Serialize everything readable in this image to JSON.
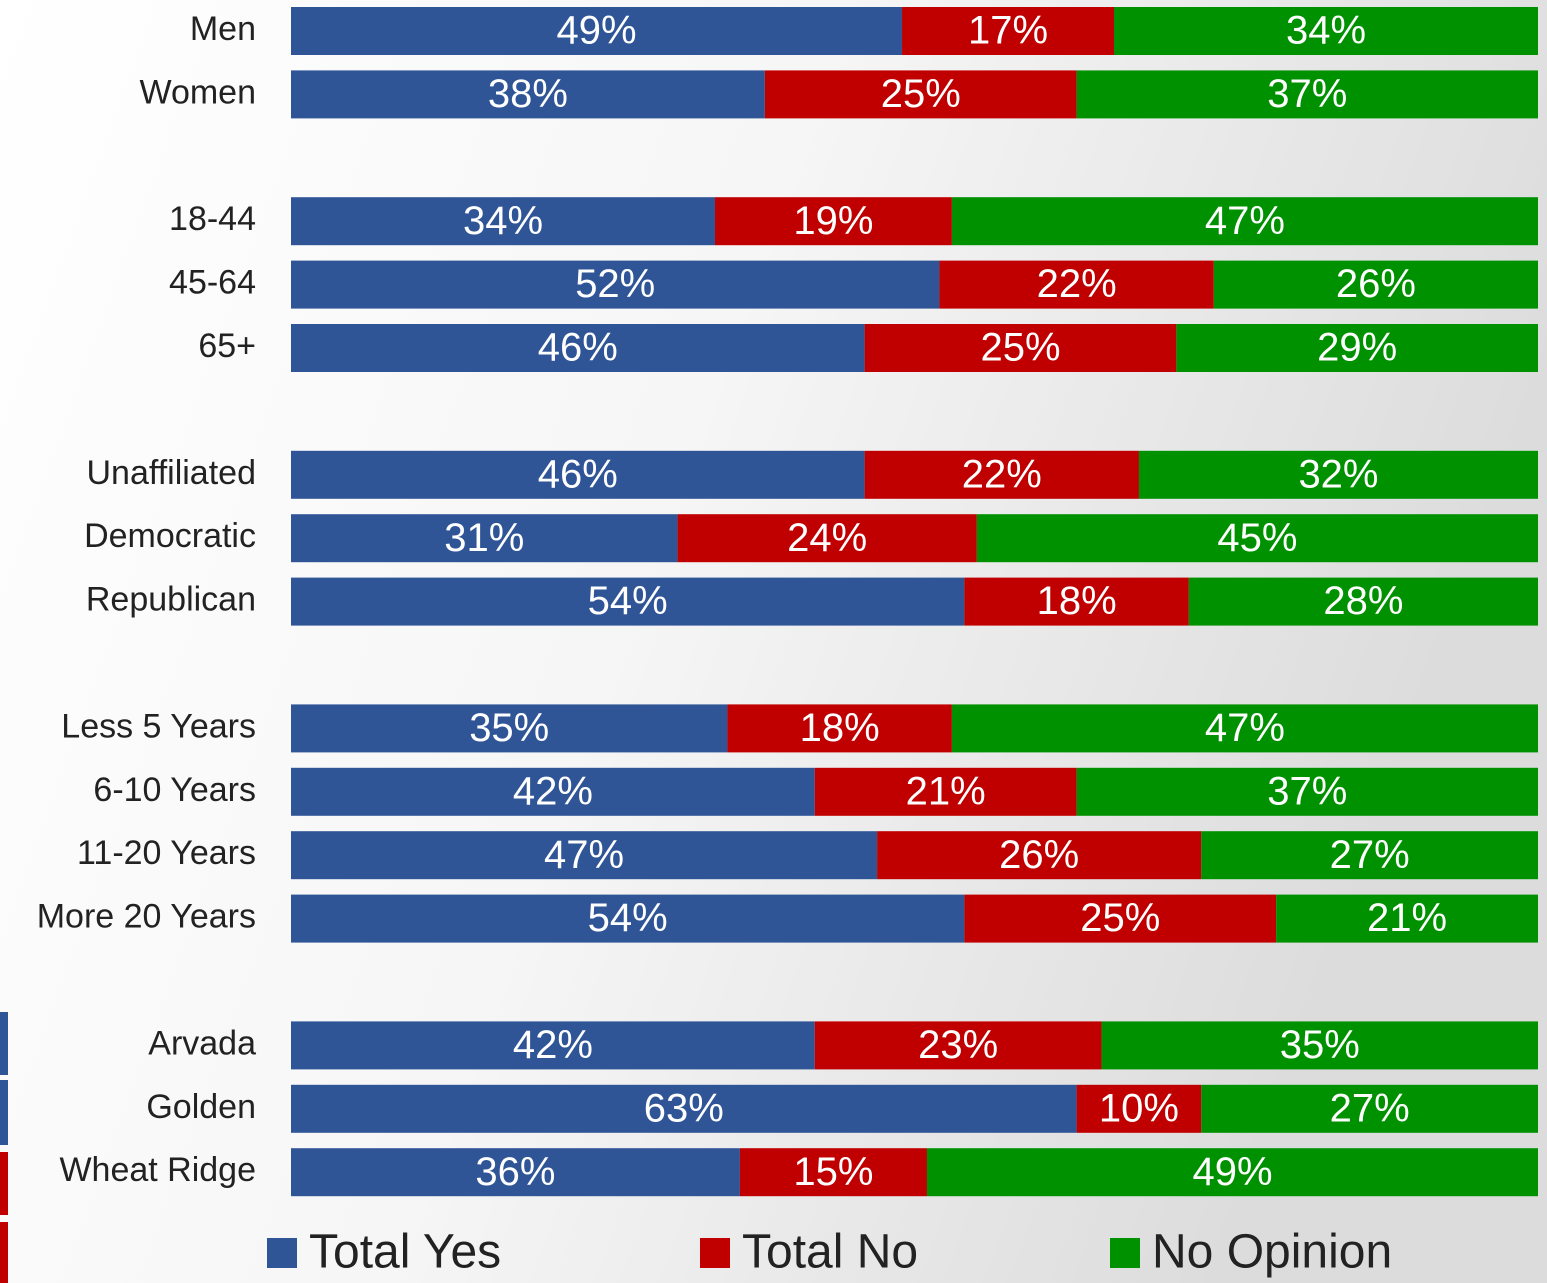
{
  "chart_data": {
    "type": "stacked-barh",
    "categories": [
      "Men",
      "Women",
      null,
      "18-44",
      "45-64",
      "65+",
      null,
      "Unaffiliated",
      "Democratic",
      "Republican",
      null,
      "Less 5 Years",
      "6-10 Years",
      "11-20 Years",
      "More 20 Years",
      null,
      "Arvada",
      "Golden",
      "Wheat Ridge"
    ],
    "xlim": [
      0,
      100
    ],
    "legend": "bottom",
    "series": [
      {
        "name": "Total Yes",
        "color": "#2f5597",
        "values": [
          49,
          38,
          null,
          34,
          52,
          46,
          null,
          46,
          31,
          54,
          null,
          35,
          42,
          47,
          54,
          null,
          42,
          63,
          36
        ],
        "value_labels": [
          "49%",
          "38%",
          null,
          "34%",
          "52%",
          "46%",
          null,
          "46%",
          "31%",
          "54%",
          null,
          "35%",
          "42%",
          "47%",
          "54%",
          null,
          "42%",
          "63%",
          "36%"
        ]
      },
      {
        "name": "Total No",
        "color": "#c00000",
        "values": [
          17,
          25,
          null,
          19,
          22,
          25,
          null,
          22,
          24,
          18,
          null,
          18,
          21,
          26,
          25,
          null,
          23,
          10,
          15
        ],
        "value_labels": [
          "17%",
          "25%",
          null,
          "19%",
          "22%",
          "25%",
          null,
          "22%",
          "24%",
          "18%",
          null,
          "18%",
          "21%",
          "26%",
          "25%",
          null,
          "23%",
          "10%",
          "15%"
        ]
      },
      {
        "name": "No Opinion",
        "color": "#009100",
        "values": [
          34,
          37,
          null,
          47,
          26,
          29,
          null,
          32,
          45,
          28,
          null,
          47,
          37,
          27,
          21,
          null,
          35,
          27,
          49
        ],
        "value_labels": [
          "34%",
          "37%",
          null,
          "47%",
          "26%",
          "29%",
          null,
          "32%",
          "45%",
          "28%",
          null,
          "47%",
          "37%",
          "27%",
          "21%",
          null,
          "35%",
          "27%",
          "49%"
        ]
      }
    ]
  }
}
